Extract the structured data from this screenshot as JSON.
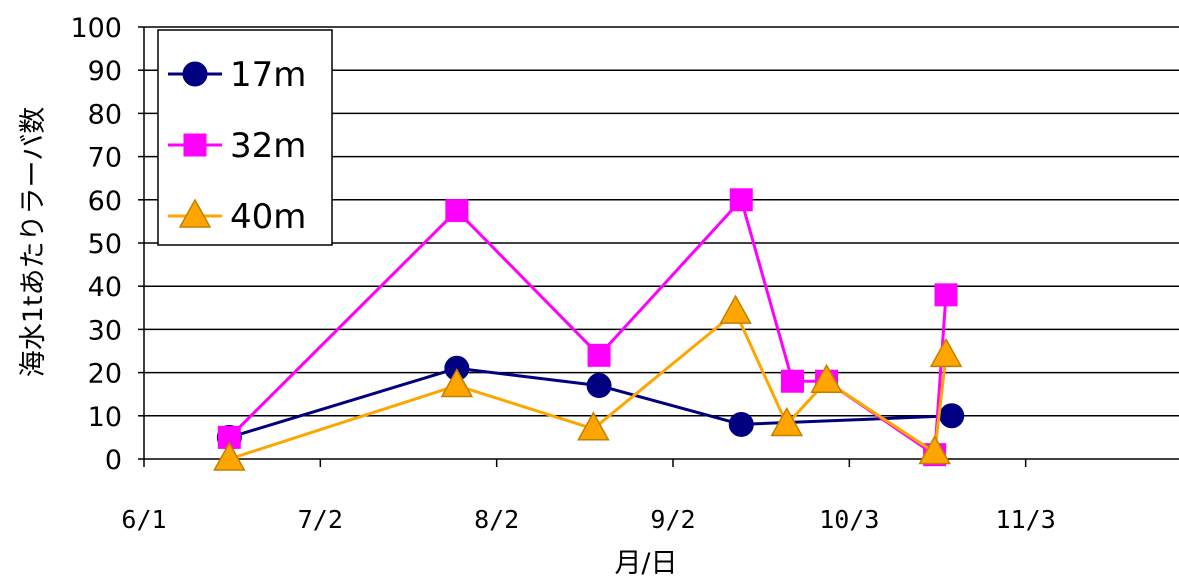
{
  "chart_data": {
    "type": "line",
    "title": "",
    "xlabel": "月/日",
    "ylabel": "海水1tあたりラーバ数",
    "x_type": "date",
    "xlim": [
      "06-01",
      "12-04"
    ],
    "ylim": [
      0,
      100
    ],
    "y_ticks": [
      0,
      10,
      20,
      30,
      40,
      50,
      60,
      70,
      80,
      90,
      100
    ],
    "x_ticks": [
      {
        "date": "06-01",
        "label": "6/1"
      },
      {
        "date": "07-02",
        "label": "7/2"
      },
      {
        "date": "08-02",
        "label": "8/2"
      },
      {
        "date": "09-02",
        "label": "9/2"
      },
      {
        "date": "10-03",
        "label": "10/3"
      },
      {
        "date": "11-03",
        "label": "11/3"
      }
    ],
    "grid": {
      "horizontal": true,
      "vertical": false
    },
    "legend": "top-left",
    "series": [
      {
        "name": "17m",
        "color": "#000080",
        "marker": "circle",
        "points": [
          {
            "x": "06-16",
            "y": 5
          },
          {
            "x": "07-26",
            "y": 21
          },
          {
            "x": "08-20",
            "y": 17
          },
          {
            "x": "09-14",
            "y": 8
          },
          {
            "x": "10-21",
            "y": 10
          }
        ]
      },
      {
        "name": "32m",
        "color": "#ff00ff",
        "marker": "square",
        "points": [
          {
            "x": "06-16",
            "y": 5
          },
          {
            "x": "07-26",
            "y": 57.5
          },
          {
            "x": "08-20",
            "y": 24
          },
          {
            "x": "09-14",
            "y": 60
          },
          {
            "x": "09-23",
            "y": 18
          },
          {
            "x": "09-29",
            "y": 18
          },
          {
            "x": "10-18",
            "y": 1
          },
          {
            "x": "10-20",
            "y": 38
          }
        ]
      },
      {
        "name": "40m",
        "color": "#ffa500",
        "marker": "triangle",
        "points": [
          {
            "x": "06-16",
            "y": 0
          },
          {
            "x": "07-26",
            "y": 17
          },
          {
            "x": "08-19",
            "y": 7
          },
          {
            "x": "09-13",
            "y": 34
          },
          {
            "x": "09-22",
            "y": 8
          },
          {
            "x": "09-29",
            "y": 18
          },
          {
            "x": "10-18",
            "y": 1.5
          },
          {
            "x": "10-20",
            "y": 24
          }
        ]
      }
    ]
  }
}
